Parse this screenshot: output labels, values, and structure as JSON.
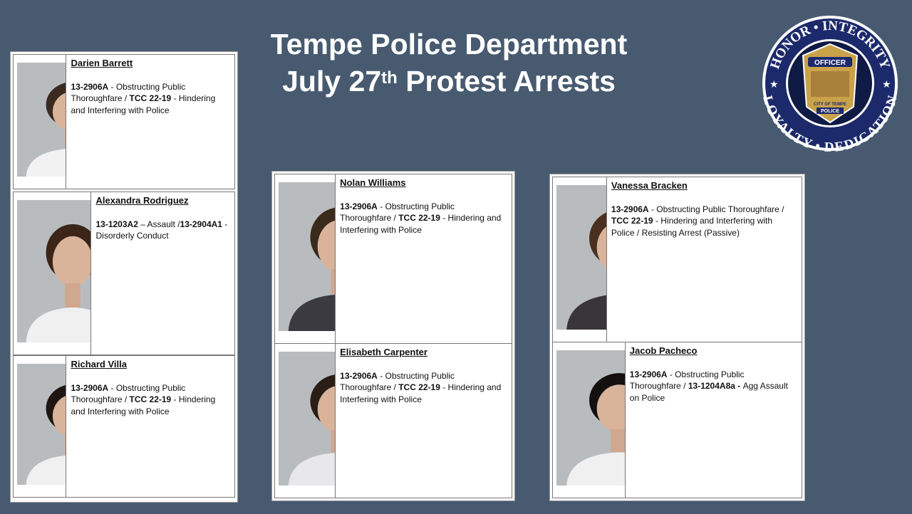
{
  "header": {
    "title_line1": "Tempe Police Department",
    "title_line2_pre": "July 27",
    "title_line2_sup": "th",
    "title_line2_post": " Protest Arrests"
  },
  "seal": {
    "text_top": "HONOR • INTEGRITY",
    "text_bottom": "LOYALTY • DEDICATION",
    "text_banner": "OFFICER",
    "text_city": "CITY OF TEMPE",
    "text_police": "POLICE",
    "icon": "police-badge-seal",
    "ring_color": "#1c2a6b"
  },
  "colors": {
    "background": "#475a70",
    "card": "#ffffff",
    "photo_backdrop": "#b9bcbf"
  },
  "arrests": [
    {
      "name": "Darien Barrett",
      "charges": [
        {
          "b": true,
          "t": "13-2906A"
        },
        {
          "b": false,
          "t": " - Obstructing Public Thoroughfare / "
        },
        {
          "b": true,
          "t": "TCC 22-19"
        },
        {
          "b": false,
          "t": " - Hindering and Interfering with Police"
        }
      ]
    },
    {
      "name": "Alexandra Rodriguez",
      "charges": [
        {
          "b": true,
          "t": "13-1203A2"
        },
        {
          "b": false,
          "t": " – Assault /"
        },
        {
          "b": true,
          "t": "13-2904A1"
        },
        {
          "b": false,
          "t": " - Disorderly Conduct"
        }
      ]
    },
    {
      "name": "Richard Villa",
      "charges": [
        {
          "b": true,
          "t": "13-2906A"
        },
        {
          "b": false,
          "t": " - Obstructing Public Thoroughfare / "
        },
        {
          "b": true,
          "t": "TCC 22-19"
        },
        {
          "b": false,
          "t": " - Hindering and Interfering with Police"
        }
      ]
    },
    {
      "name": "Nolan Williams",
      "charges": [
        {
          "b": true,
          "t": "13-2906A"
        },
        {
          "b": false,
          "t": " - Obstructing Public Thoroughfare / "
        },
        {
          "b": true,
          "t": "TCC 22-19"
        },
        {
          "b": false,
          "t": " - Hindering and Interfering with Police"
        }
      ]
    },
    {
      "name": "Elisabeth Carpenter",
      "charges": [
        {
          "b": true,
          "t": "13-2906A"
        },
        {
          "b": false,
          "t": " - Obstructing Public Thoroughfare / "
        },
        {
          "b": true,
          "t": "TCC 22-19"
        },
        {
          "b": false,
          "t": " - Hindering and Interfering with Police"
        }
      ]
    },
    {
      "name": "Vanessa Bracken",
      "charges": [
        {
          "b": true,
          "t": "13-2906A"
        },
        {
          "b": false,
          "t": " - Obstructing Public Thoroughfare / "
        },
        {
          "b": true,
          "t": "TCC 22-19"
        },
        {
          "b": false,
          "t": " - Hindering and Interfering with Police / Resisting Arrest (Passive)"
        }
      ]
    },
    {
      "name": "Jacob Pacheco",
      "charges": [
        {
          "b": true,
          "t": "13-2906A"
        },
        {
          "b": false,
          "t": " - Obstructing Public Thoroughfare / "
        },
        {
          "b": true,
          "t": "13-1204A8a - "
        },
        {
          "b": false,
          "t": "Agg Assault on Police"
        }
      ]
    }
  ]
}
